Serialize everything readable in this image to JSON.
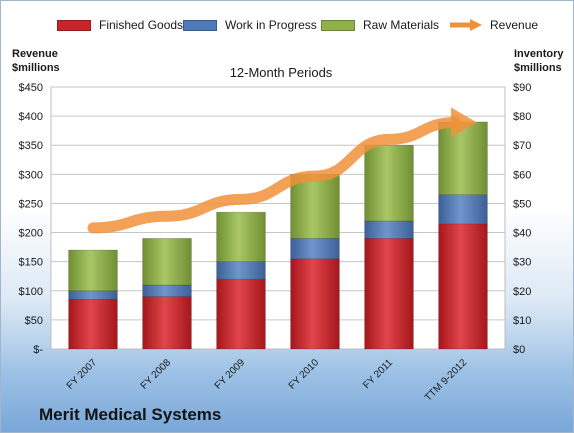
{
  "legend": {
    "finished_goods": "Finished Goods",
    "work_in_progress": "Work in Progress",
    "raw_materials": "Raw Materials",
    "revenue": "Revenue"
  },
  "left_axis_title_line1": "Revenue",
  "left_axis_title_line2": "$millions",
  "right_axis_title_line1": "Inventory",
  "right_axis_title_line2": "$millions",
  "company_name": "Merit Medical Systems",
  "colors": {
    "finished_goods": "#c8252a",
    "work_in_progress": "#4f79b8",
    "raw_materials": "#8fb04a",
    "revenue": "#f0903a"
  },
  "chart_data": {
    "type": "bar",
    "title": "12-Month Periods",
    "categories": [
      "FY 2007",
      "FY 2008",
      "FY 2009",
      "FY 2010",
      "FY 2011",
      "TTM 9-2012"
    ],
    "series": [
      {
        "name": "Finished Goods",
        "axis": "right",
        "values": [
          17,
          18,
          24,
          31,
          38,
          43
        ]
      },
      {
        "name": "Work in Progress",
        "axis": "right",
        "values": [
          3,
          4,
          6,
          7,
          6,
          10
        ]
      },
      {
        "name": "Raw Materials",
        "axis": "right",
        "values": [
          14,
          16,
          17,
          22,
          26,
          25
        ]
      },
      {
        "name": "Revenue",
        "axis": "left",
        "kind": "line",
        "values": [
          208,
          228,
          257,
          297,
          360,
          389
        ]
      }
    ],
    "left_axis": {
      "ylim": [
        0,
        450
      ],
      "ticks": [
        "$-",
        "$50",
        "$100",
        "$150",
        "$200",
        "$250",
        "$300",
        "$350",
        "$400",
        "$450"
      ]
    },
    "right_axis": {
      "ylim": [
        0,
        90
      ],
      "ticks": [
        "$0",
        "$10",
        "$20",
        "$30",
        "$40",
        "$50",
        "$60",
        "$70",
        "$80",
        "$90"
      ]
    },
    "grid": true,
    "legend_position": "top"
  }
}
